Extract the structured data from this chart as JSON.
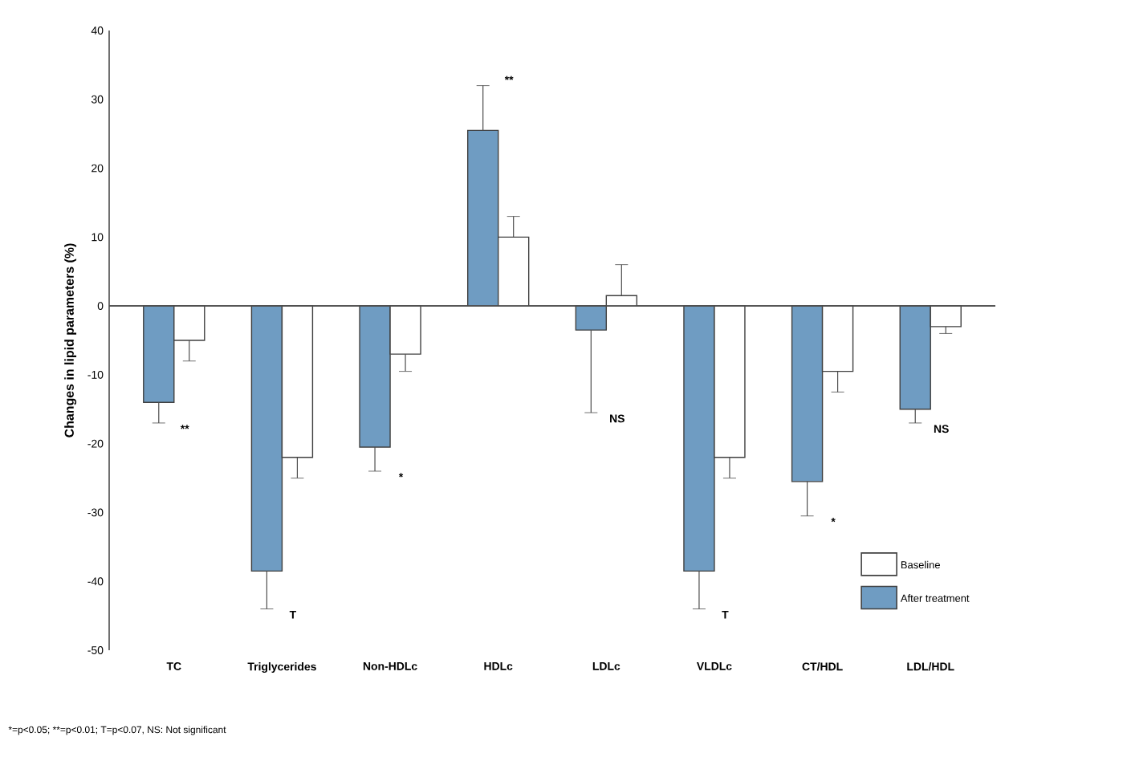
{
  "chart_data": {
    "type": "bar",
    "ylabel": "Changes in lipid parameters (%)",
    "categories": [
      "TC",
      "Triglycerides",
      "Non-HDLc",
      "HDLc",
      "LDLc",
      "VLDLc",
      "CT/HDL",
      "LDL/HDL"
    ],
    "series": [
      {
        "name": "After treatment",
        "color": "#6f9cc2",
        "values": [
          -14,
          -38.5,
          -20.5,
          25.5,
          -3.5,
          -38.5,
          -25.5,
          -15
        ],
        "errors": [
          [
            -17,
            -14
          ],
          [
            -44,
            -38.5
          ],
          [
            -24,
            -20.5
          ],
          [
            25.5,
            32
          ],
          [
            -15.5,
            -3.5
          ],
          [
            -44,
            -38.5
          ],
          [
            -30.5,
            -25.5
          ],
          [
            -17,
            -15
          ]
        ]
      },
      {
        "name": "Baseline",
        "color": "#ffffff",
        "values": [
          -5,
          -22,
          -7,
          10,
          1.5,
          -22,
          -9.5,
          -3
        ],
        "errors": [
          [
            -8,
            -5
          ],
          [
            -25,
            -22
          ],
          [
            -9.5,
            -7
          ],
          [
            10,
            13
          ],
          [
            1.5,
            6
          ],
          [
            -25,
            -22
          ],
          [
            -12.5,
            -9.5
          ],
          [
            -4,
            -3
          ]
        ]
      }
    ],
    "ylim": [
      -50,
      40
    ],
    "yticks": [
      -50,
      -40,
      -30,
      -20,
      -10,
      0,
      10,
      20,
      30,
      40
    ],
    "legend": "bottom right",
    "annotations": [
      "**",
      "T",
      "*",
      "**",
      "NS",
      "T",
      "*",
      "NS",
      "*=p<0.05;  **=p<0.01;  T=p<0.07, NS: Not significant"
    ]
  }
}
